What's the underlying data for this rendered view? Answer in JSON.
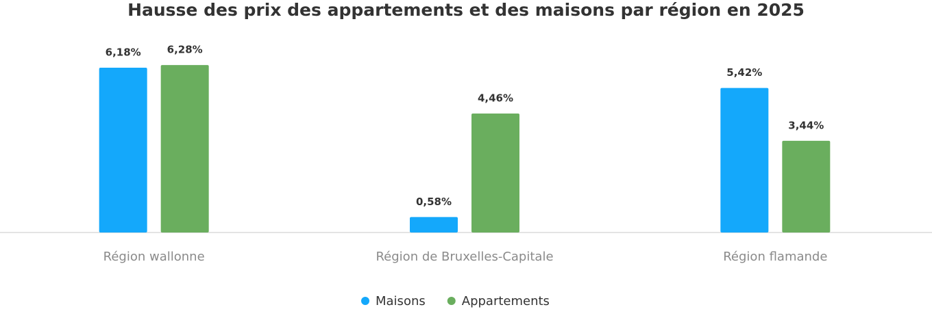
{
  "chart_data": {
    "type": "bar",
    "title": "Hausse des prix des appartements et des maisons par région en 2025",
    "categories": [
      "Région wallonne",
      "Région de Bruxelles-Capitale",
      "Région flamande"
    ],
    "series": [
      {
        "name": "Maisons",
        "color": "#14a8fb",
        "values": [
          6.18,
          0.58,
          5.42
        ],
        "value_labels": [
          "6,18%",
          "0,58%",
          "5,42%"
        ]
      },
      {
        "name": "Appartements",
        "color": "#6aae5e",
        "values": [
          6.28,
          4.46,
          3.44
        ],
        "value_labels": [
          "6,28%",
          "4,46%",
          "3,44%"
        ]
      }
    ],
    "legend": "bottom"
  }
}
